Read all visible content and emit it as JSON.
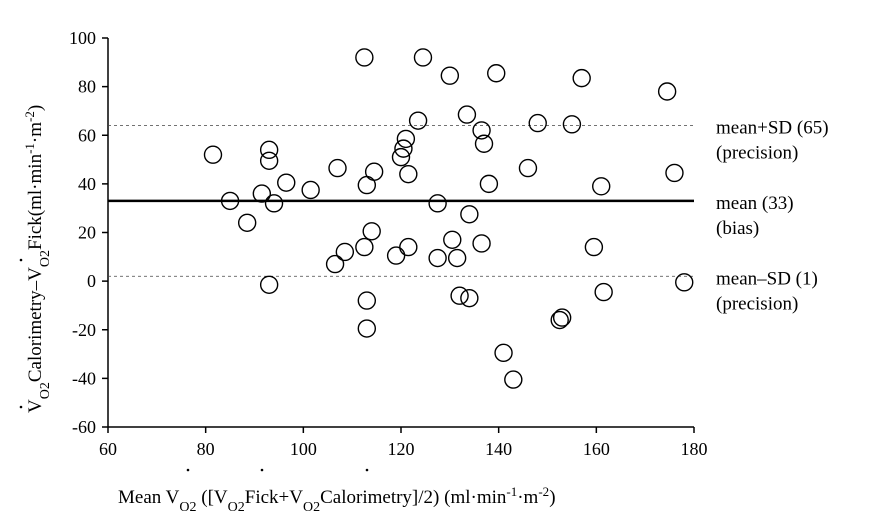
{
  "chart_data": {
    "type": "scatter",
    "xlabel_parts": {
      "prefix": "Mean V",
      "sub1": "O2",
      "mid1": " ([V",
      "sub2": "O2",
      "mid2": "Fick+V",
      "sub3": "O2",
      "mid3": "Calorimetry]/2) (ml·min",
      "sup1": "-1",
      "mid4": "·m",
      "sup2": "-2",
      "suffix": ")"
    },
    "ylabel_parts": {
      "prefix": "V",
      "sub1": "O2",
      "mid1": "Calorimetry–V",
      "sub2": "O2",
      "mid2": "Fick(ml·min",
      "sup1": "-1",
      "mid3": "·m",
      "sup2": "-2",
      "suffix": ")"
    },
    "xlim": [
      60,
      180
    ],
    "ylim": [
      -60,
      100
    ],
    "x_ticks": [
      60,
      80,
      100,
      120,
      140,
      160,
      180
    ],
    "y_ticks": [
      -60,
      -40,
      -20,
      0,
      20,
      40,
      60,
      80,
      100
    ],
    "grid": false,
    "reference_lines": [
      {
        "y": 64,
        "style": "dashed",
        "label_line1": "mean+SD (65)",
        "label_line2": "(precision)"
      },
      {
        "y": 33,
        "style": "solid",
        "label_line1": "mean (33)",
        "label_line2": "(bias)"
      },
      {
        "y": 2,
        "style": "dashed",
        "label_line1": "mean–SD (1)",
        "label_line2": "(precision)"
      }
    ],
    "points": [
      {
        "x": 81.5,
        "y": 52
      },
      {
        "x": 85,
        "y": 33
      },
      {
        "x": 88.5,
        "y": 24
      },
      {
        "x": 91.5,
        "y": 36
      },
      {
        "x": 93,
        "y": 54
      },
      {
        "x": 93,
        "y": 49.5
      },
      {
        "x": 94,
        "y": 32
      },
      {
        "x": 93,
        "y": -1.5
      },
      {
        "x": 96.5,
        "y": 40.5
      },
      {
        "x": 101.5,
        "y": 37.5
      },
      {
        "x": 106.5,
        "y": 7
      },
      {
        "x": 107,
        "y": 46.5
      },
      {
        "x": 108.5,
        "y": 12
      },
      {
        "x": 112.5,
        "y": 14
      },
      {
        "x": 112.5,
        "y": 92
      },
      {
        "x": 113,
        "y": 39.5
      },
      {
        "x": 113,
        "y": -8
      },
      {
        "x": 113,
        "y": -19.5
      },
      {
        "x": 114,
        "y": 20.5
      },
      {
        "x": 114.5,
        "y": 45
      },
      {
        "x": 119,
        "y": 10.5
      },
      {
        "x": 120,
        "y": 51
      },
      {
        "x": 120.5,
        "y": 54.5
      },
      {
        "x": 121,
        "y": 58.5
      },
      {
        "x": 121.5,
        "y": 44
      },
      {
        "x": 121.5,
        "y": 14
      },
      {
        "x": 123.5,
        "y": 66
      },
      {
        "x": 124.5,
        "y": 92
      },
      {
        "x": 127.5,
        "y": 32
      },
      {
        "x": 127.5,
        "y": 9.5
      },
      {
        "x": 130,
        "y": 84.5
      },
      {
        "x": 130.5,
        "y": 17
      },
      {
        "x": 131.5,
        "y": 9.5
      },
      {
        "x": 132,
        "y": -6
      },
      {
        "x": 133.5,
        "y": 68.5
      },
      {
        "x": 134,
        "y": 27.5
      },
      {
        "x": 134,
        "y": -7
      },
      {
        "x": 136.5,
        "y": 62
      },
      {
        "x": 136.5,
        "y": 15.5
      },
      {
        "x": 137,
        "y": 56.5
      },
      {
        "x": 138,
        "y": 40
      },
      {
        "x": 139.5,
        "y": 85.5
      },
      {
        "x": 141,
        "y": -29.5
      },
      {
        "x": 143,
        "y": -40.5
      },
      {
        "x": 146,
        "y": 46.5
      },
      {
        "x": 148,
        "y": 65
      },
      {
        "x": 152.5,
        "y": -16
      },
      {
        "x": 153,
        "y": -15
      },
      {
        "x": 155,
        "y": 64.5
      },
      {
        "x": 157,
        "y": 83.5
      },
      {
        "x": 159.5,
        "y": 14
      },
      {
        "x": 161,
        "y": 39
      },
      {
        "x": 161.5,
        "y": -4.5
      },
      {
        "x": 174.5,
        "y": 78
      },
      {
        "x": 176,
        "y": 44.5
      },
      {
        "x": 178,
        "y": -0.5
      }
    ]
  }
}
